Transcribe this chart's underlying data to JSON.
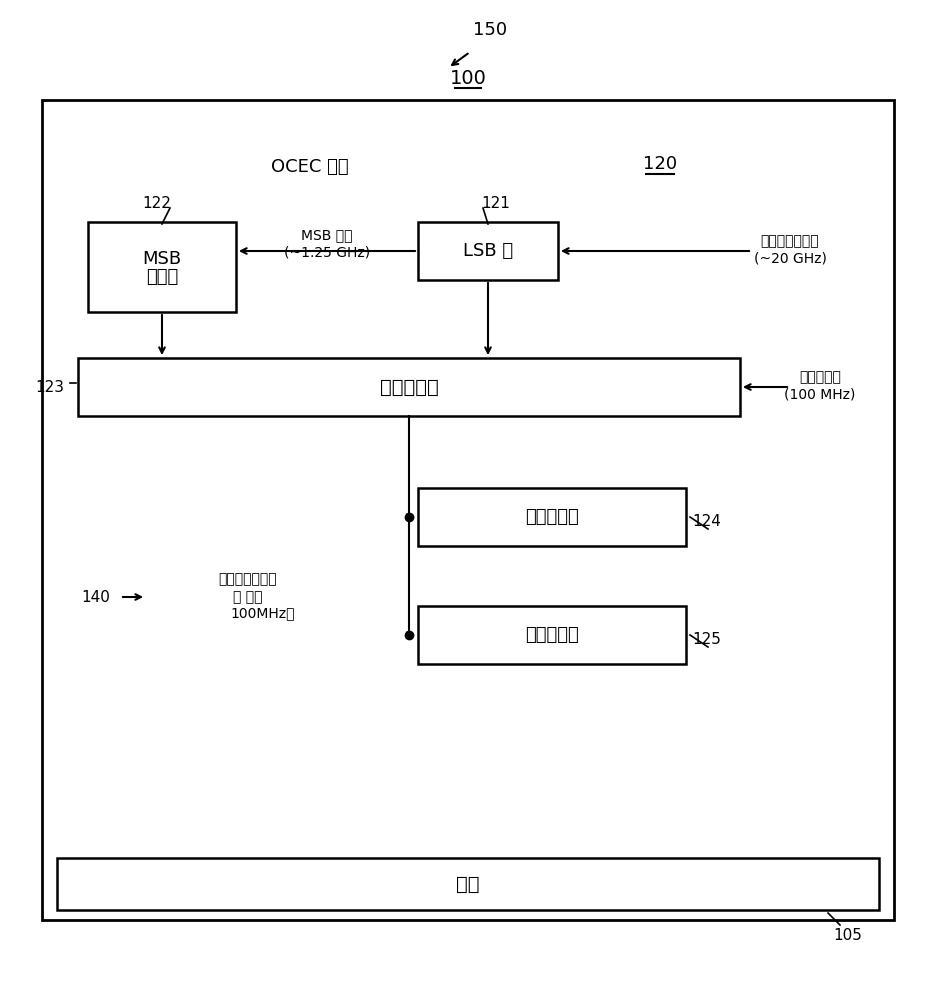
{
  "bg_color": "#ffffff",
  "text_color": "#000000",
  "fig_width": 9.36,
  "fig_height": 10.0,
  "label_150": "150",
  "label_100": "100",
  "label_120": "120",
  "label_122": "122",
  "label_121": "121",
  "label_123": "123",
  "label_124": "124",
  "label_125": "125",
  "label_140": "140",
  "label_105": "105",
  "box_MSB_line1": "MSB",
  "box_MSB_line2": "計數器",
  "box_LSB_text": "LSB 環",
  "box_freq_est_text": "頻率估計器",
  "box_freq_mon_text": "頻率監測器",
  "box_linear_text": "線性度測量",
  "box_substrate_text": "襯底",
  "label_OCEC": "OCEC 模塊",
  "label_MSB_clock_line1": "MSB 時鐘",
  "label_MSB_clock_line2": "(~1.25 GHz)",
  "label_synth_clock_line1": "合成器輸出時鐘",
  "label_synth_clock_line2": "(~20 GHz)",
  "label_seq_clock_line1": "序列器時鐘",
  "label_seq_clock_line2": "(100 MHz)",
  "label_est_freq_line1": "估計的時鐘頻率",
  "label_est_freq_line2": "（ 除以",
  "label_est_freq_line3": "100MHz）"
}
